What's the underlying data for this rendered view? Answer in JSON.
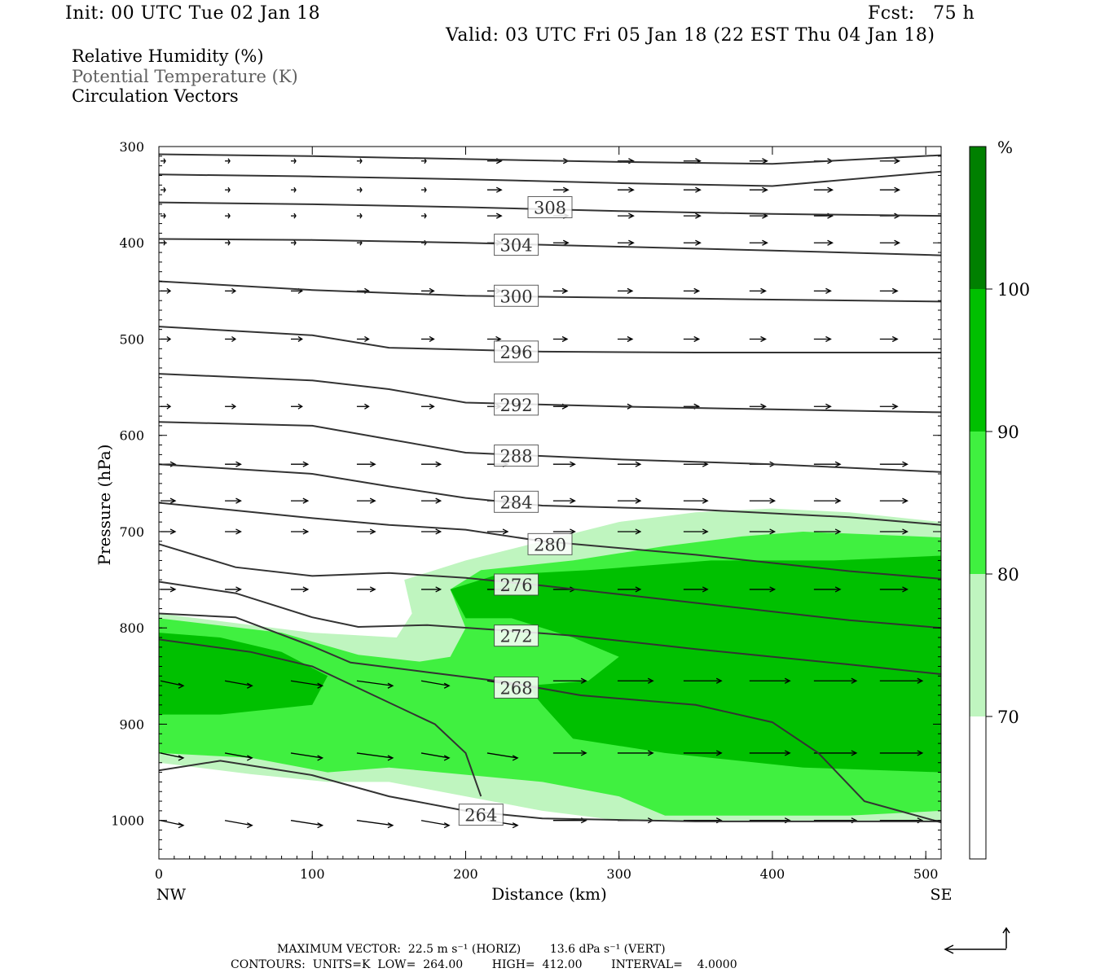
{
  "header": {
    "init": "Init: 00 UTC Tue 02 Jan 18",
    "fcst": "Fcst:   75 h",
    "valid": "Valid: 03 UTC Fri 05 Jan 18 (22 EST Thu 04 Jan 18)"
  },
  "legend": {
    "line1": "Relative Humidity (%)",
    "line2": "Potential Temperature (K)",
    "line3": "Circulation Vectors"
  },
  "colorbar": {
    "unit": "%",
    "levels": [
      "70",
      "80",
      "90",
      "100"
    ],
    "colors": [
      "#ffffff",
      "#bff5bf",
      "#40f040",
      "#00c000",
      "#008000"
    ]
  },
  "footer": {
    "line1": "MAXIMUM VECTOR:  22.5 m s⁻¹ (HORIZ)        13.6 dPa s⁻¹ (VERT)",
    "line2": "CONTOURS:  UNITS=K  LOW=  264.00        HIGH=  412.00        INTERVAL=    4.0000"
  },
  "chart_data": {
    "type": "cross-section",
    "xlabel": "Distance (km)",
    "ylabel": "Pressure (hPa)",
    "xlim": [
      0,
      510
    ],
    "ylim": [
      1040,
      300
    ],
    "x_ticks": [
      "0",
      "100",
      "200",
      "300",
      "400",
      "500"
    ],
    "y_ticks": [
      "300",
      "400",
      "500",
      "600",
      "700",
      "800",
      "900",
      "1000"
    ],
    "x_end_labels": {
      "left": "NW",
      "right": "SE"
    },
    "theta_contour_labels": [
      {
        "value": "308",
        "x": 255,
        "p": 363
      },
      {
        "value": "304",
        "x": 233,
        "p": 402
      },
      {
        "value": "300",
        "x": 233,
        "p": 455
      },
      {
        "value": "296",
        "x": 233,
        "p": 513
      },
      {
        "value": "292",
        "x": 233,
        "p": 568
      },
      {
        "value": "288",
        "x": 233,
        "p": 621
      },
      {
        "value": "284",
        "x": 233,
        "p": 669
      },
      {
        "value": "280",
        "x": 255,
        "p": 713
      },
      {
        "value": "276",
        "x": 233,
        "p": 755
      },
      {
        "value": "272",
        "x": 233,
        "p": 808
      },
      {
        "value": "268",
        "x": 233,
        "p": 862
      },
      {
        "value": "264",
        "x": 210,
        "p": 994
      }
    ],
    "theta_contours": [
      [
        [
          0,
          308
        ],
        [
          100,
          310
        ],
        [
          200,
          313
        ],
        [
          300,
          316
        ],
        [
          400,
          318
        ],
        [
          510,
          309
        ]
      ],
      [
        [
          0,
          329
        ],
        [
          100,
          331
        ],
        [
          200,
          334
        ],
        [
          300,
          338
        ],
        [
          400,
          341
        ],
        [
          510,
          326
        ]
      ],
      [
        [
          0,
          358
        ],
        [
          100,
          360
        ],
        [
          200,
          363
        ],
        [
          300,
          367
        ],
        [
          400,
          370
        ],
        [
          510,
          372
        ]
      ],
      [
        [
          0,
          396
        ],
        [
          100,
          397
        ],
        [
          200,
          400
        ],
        [
          300,
          404
        ],
        [
          400,
          408
        ],
        [
          510,
          413
        ]
      ],
      [
        [
          0,
          440
        ],
        [
          100,
          449
        ],
        [
          200,
          455
        ],
        [
          300,
          457
        ],
        [
          400,
          459
        ],
        [
          510,
          461
        ]
      ],
      [
        [
          0,
          487
        ],
        [
          100,
          496
        ],
        [
          150,
          509
        ],
        [
          250,
          513
        ],
        [
          350,
          514
        ],
        [
          510,
          514
        ]
      ],
      [
        [
          0,
          536
        ],
        [
          100,
          543
        ],
        [
          150,
          552
        ],
        [
          200,
          566
        ],
        [
          300,
          570
        ],
        [
          400,
          573
        ],
        [
          510,
          576
        ]
      ],
      [
        [
          0,
          586
        ],
        [
          100,
          590
        ],
        [
          150,
          604
        ],
        [
          200,
          618
        ],
        [
          300,
          625
        ],
        [
          400,
          630
        ],
        [
          510,
          638
        ]
      ],
      [
        [
          0,
          630
        ],
        [
          100,
          640
        ],
        [
          150,
          653
        ],
        [
          200,
          665
        ],
        [
          250,
          673
        ],
        [
          350,
          677
        ],
        [
          450,
          685
        ],
        [
          510,
          693
        ]
      ],
      [
        [
          0,
          670
        ],
        [
          100,
          686
        ],
        [
          150,
          693
        ],
        [
          200,
          698
        ],
        [
          250,
          710
        ],
        [
          350,
          724
        ],
        [
          450,
          741
        ],
        [
          510,
          749
        ]
      ],
      [
        [
          0,
          713
        ],
        [
          50,
          737
        ],
        [
          100,
          746
        ],
        [
          150,
          743
        ],
        [
          200,
          748
        ],
        [
          250,
          756
        ],
        [
          350,
          774
        ],
        [
          450,
          792
        ],
        [
          510,
          800
        ]
      ],
      [
        [
          0,
          752
        ],
        [
          50,
          764
        ],
        [
          100,
          789
        ],
        [
          130,
          799
        ],
        [
          175,
          797
        ],
        [
          220,
          802
        ],
        [
          270,
          808
        ],
        [
          350,
          822
        ],
        [
          450,
          838
        ],
        [
          510,
          848
        ]
      ],
      [
        [
          0,
          785
        ],
        [
          50,
          789
        ],
        [
          100,
          819
        ],
        [
          125,
          836
        ],
        [
          175,
          846
        ],
        [
          225,
          856
        ],
        [
          275,
          870
        ],
        [
          350,
          880
        ],
        [
          400,
          898
        ],
        [
          430,
          930
        ],
        [
          460,
          980
        ],
        [
          510,
          1002
        ]
      ],
      [
        [
          0,
          812
        ],
        [
          60,
          825
        ],
        [
          100,
          840
        ],
        [
          140,
          870
        ],
        [
          180,
          900
        ],
        [
          200,
          930
        ],
        [
          210,
          975
        ]
      ],
      [
        [
          0,
          948
        ],
        [
          40,
          938
        ],
        [
          100,
          953
        ],
        [
          150,
          975
        ],
        [
          200,
          990
        ],
        [
          250,
          998
        ],
        [
          350,
          1001
        ],
        [
          450,
          1001
        ],
        [
          510,
          1001
        ]
      ]
    ],
    "rh_regions": [
      {
        "level": "70-80",
        "poly": [
          [
            0,
            785
          ],
          [
            100,
            805
          ],
          [
            155,
            810
          ],
          [
            165,
            785
          ],
          [
            160,
            750
          ],
          [
            200,
            730
          ],
          [
            250,
            710
          ],
          [
            300,
            690
          ],
          [
            350,
            680
          ],
          [
            400,
            676
          ],
          [
            450,
            680
          ],
          [
            510,
            690
          ],
          [
            510,
            1000
          ],
          [
            300,
            1000
          ],
          [
            250,
            990
          ],
          [
            200,
            975
          ],
          [
            150,
            960
          ],
          [
            110,
            960
          ],
          [
            60,
            952
          ],
          [
            0,
            940
          ]
        ]
      },
      {
        "level": "80-90",
        "poly": [
          [
            0,
            790
          ],
          [
            80,
            805
          ],
          [
            130,
            828
          ],
          [
            170,
            835
          ],
          [
            190,
            830
          ],
          [
            200,
            800
          ],
          [
            190,
            760
          ],
          [
            210,
            740
          ],
          [
            270,
            730
          ],
          [
            330,
            715
          ],
          [
            380,
            705
          ],
          [
            420,
            700
          ],
          [
            510,
            706
          ],
          [
            510,
            990
          ],
          [
            450,
            995
          ],
          [
            330,
            995
          ],
          [
            300,
            975
          ],
          [
            250,
            960
          ],
          [
            150,
            945
          ],
          [
            110,
            950
          ],
          [
            60,
            935
          ],
          [
            0,
            930
          ]
        ]
      },
      {
        "level": "90-100",
        "poly": [
          [
            0,
            805
          ],
          [
            40,
            810
          ],
          [
            80,
            825
          ],
          [
            110,
            850
          ],
          [
            100,
            880
          ],
          [
            40,
            890
          ],
          [
            0,
            890
          ]
        ]
      },
      {
        "level": "90-100",
        "poly": [
          [
            190,
            760
          ],
          [
            220,
            745
          ],
          [
            280,
            740
          ],
          [
            360,
            730
          ],
          [
            440,
            730
          ],
          [
            510,
            725
          ],
          [
            510,
            950
          ],
          [
            420,
            945
          ],
          [
            330,
            930
          ],
          [
            270,
            915
          ],
          [
            250,
            880
          ],
          [
            240,
            860
          ],
          [
            280,
            855
          ],
          [
            300,
            830
          ],
          [
            270,
            810
          ],
          [
            230,
            790
          ],
          [
            200,
            790
          ]
        ]
      }
    ],
    "vectors_note": "Circulation vectors shown as arrows"
  }
}
